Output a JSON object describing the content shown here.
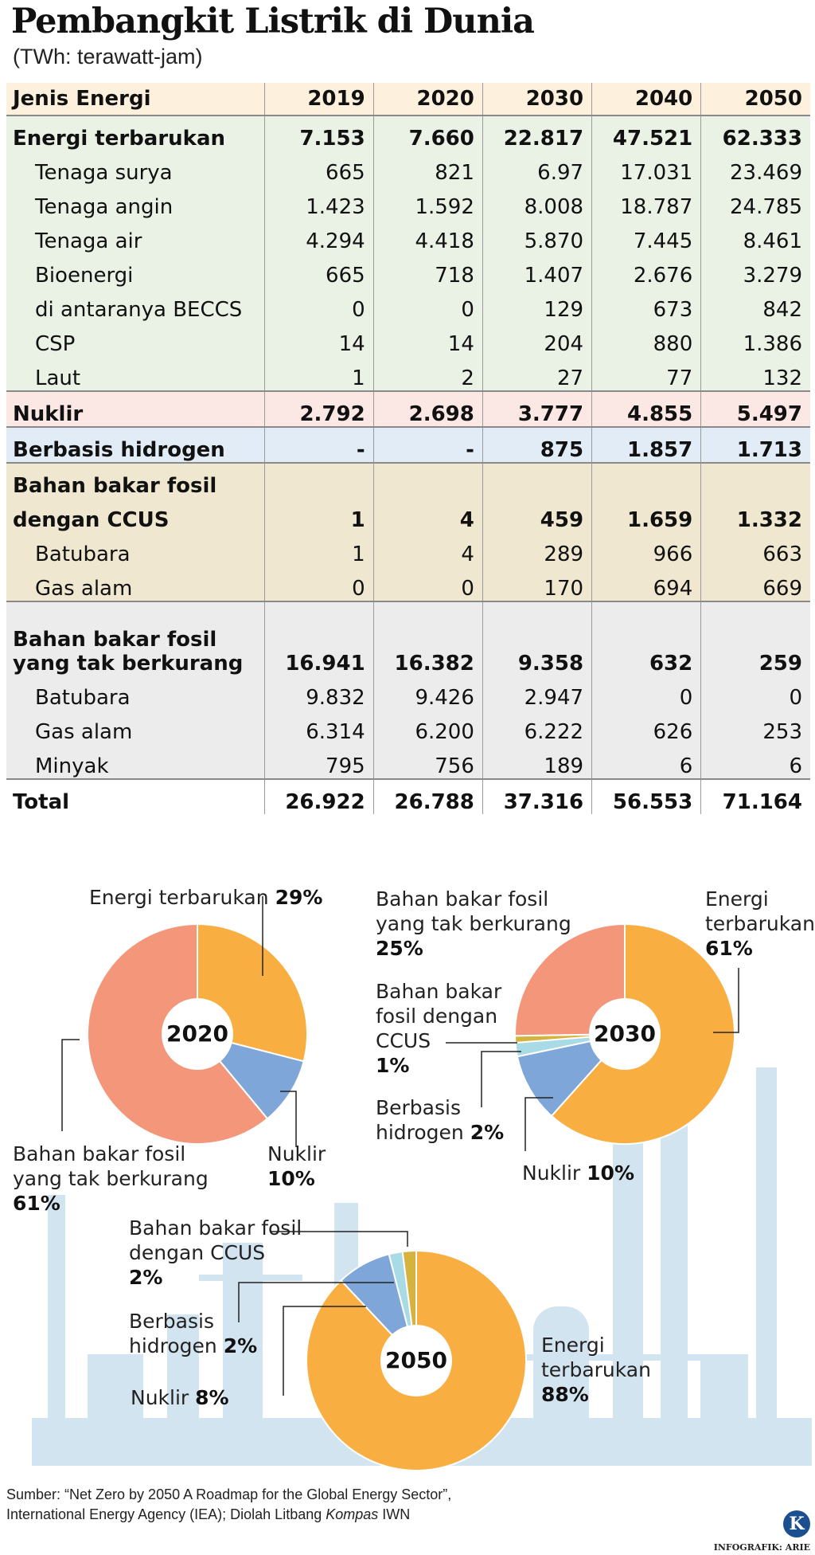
{
  "title": "Pembangkit Listrik di Dunia",
  "subtitle": "(TWh: terawatt-jam)",
  "table": {
    "header": [
      "Jenis Energi",
      "2019",
      "2020",
      "2030",
      "2040",
      "2050"
    ],
    "renewable": {
      "label": "Energi terbarukan",
      "values": [
        "7.153",
        "7.660",
        "22.817",
        "47.521",
        "62.333"
      ]
    },
    "renewable_rows": [
      {
        "label": "Tenaga  surya",
        "values": [
          "665",
          "821",
          "6.97",
          "17.031",
          "23.469"
        ]
      },
      {
        "label": "Tenaga angin",
        "values": [
          "1.423",
          "1.592",
          "8.008",
          "18.787",
          "24.785"
        ]
      },
      {
        "label": "Tenaga air",
        "values": [
          "4.294",
          "4.418",
          "5.870",
          "7.445",
          "8.461"
        ]
      },
      {
        "label": "Bioenergi",
        "values": [
          "665",
          "718",
          "1.407",
          "2.676",
          "3.279"
        ]
      },
      {
        "label": "di antaranya BECCS",
        "values": [
          "0",
          "0",
          "129",
          "673",
          "842"
        ]
      },
      {
        "label": "CSP",
        "values": [
          "14",
          "14",
          "204",
          "880",
          "1.386"
        ]
      },
      {
        "label": "Laut",
        "values": [
          "1",
          "2",
          "27",
          "77",
          "132"
        ]
      }
    ],
    "nuclear": {
      "label": "Nuklir",
      "values": [
        "2.792",
        "2.698",
        "3.777",
        "4.855",
        "5.497"
      ]
    },
    "hydrogen": {
      "label": "Berbasis hidrogen",
      "values": [
        "-",
        "-",
        "875",
        "1.857",
        "1.713"
      ]
    },
    "ccus": {
      "label_line1": "Bahan bakar fosil",
      "label_line2": "dengan CCUS",
      "values": [
        "1",
        "4",
        "459",
        "1.659",
        "1.332"
      ]
    },
    "ccus_rows": [
      {
        "label": "Batubara",
        "values": [
          "1",
          "4",
          "289",
          "966",
          "663"
        ]
      },
      {
        "label": "Gas alam",
        "values": [
          "0",
          "0",
          "170",
          "694",
          "669"
        ]
      }
    ],
    "unabated": {
      "label": "Bahan bakar fosil yang tak berkurang",
      "values": [
        "16.941",
        "16.382",
        "9.358",
        "632",
        "259"
      ]
    },
    "unabated_rows": [
      {
        "label": "Batubara",
        "values": [
          "9.832",
          "9.426",
          "2.947",
          "0",
          "0"
        ]
      },
      {
        "label": "Gas alam",
        "values": [
          "6.314",
          "6.200",
          "6.222",
          "626",
          "253"
        ]
      },
      {
        "label": "Minyak",
        "values": [
          "795",
          "756",
          "189",
          "6",
          "6"
        ]
      }
    ],
    "total": {
      "label": "Total",
      "values": [
        "26.922",
        "26.788",
        "37.316",
        "56.553",
        "71.164"
      ]
    }
  },
  "colors": {
    "renewable": "#f9ae42",
    "unabated": "#f4967a",
    "nuclear": "#7ea6d8",
    "hydrogen": "#a9dbe6",
    "ccus": "#d6b33f",
    "skyline": "#d3e4f1"
  },
  "chart_data": [
    {
      "type": "pie",
      "center_label": "2020",
      "slices": [
        {
          "label": "Energi terbarukan",
          "pct": "29%",
          "value": 29,
          "color": "#f9ae42"
        },
        {
          "label": "Nuklir",
          "pct": "10%",
          "value": 10,
          "color": "#7ea6d8"
        },
        {
          "label": "Bahan bakar fosil yang tak berkurang",
          "pct": "61%",
          "value": 61,
          "color": "#f4967a"
        }
      ],
      "labels": {
        "ren": {
          "line1": "Energi terbarukan",
          "pct": "29%"
        },
        "nuk": {
          "line1": "Nuklir",
          "pct": "10%"
        },
        "unb": {
          "line1": "Bahan bakar fosil",
          "line2": "yang tak berkurang",
          "pct": "61%"
        }
      }
    },
    {
      "type": "pie",
      "center_label": "2030",
      "slices": [
        {
          "label": "Energi terbarukan",
          "pct": "61%",
          "value": 61,
          "color": "#f9ae42"
        },
        {
          "label": "Nuklir",
          "pct": "10%",
          "value": 10,
          "color": "#7ea6d8"
        },
        {
          "label": "Berbasis hidrogen",
          "pct": "2%",
          "value": 2,
          "color": "#a9dbe6"
        },
        {
          "label": "Bahan bakar fosil dengan CCUS",
          "pct": "1%",
          "value": 1,
          "color": "#d6b33f"
        },
        {
          "label": "Bahan bakar fosil yang tak berkurang",
          "pct": "25%",
          "value": 25,
          "color": "#f4967a"
        }
      ],
      "labels": {
        "unb": {
          "line1": "Bahan bakar fosil",
          "line2": "yang tak berkurang",
          "pct": "25%"
        },
        "ren": {
          "line1": "Energi",
          "line2": "terbarukan",
          "pct": "61%"
        },
        "ccus": {
          "line1": "Bahan bakar",
          "line2": "fosil dengan",
          "line3": "CCUS",
          "pct": "1%"
        },
        "hyd": {
          "line1": "Berbasis",
          "line2": "hidrogen",
          "pct": "2%"
        },
        "nuk": {
          "line1": "Nuklir",
          "pct": "10%"
        }
      }
    },
    {
      "type": "pie",
      "center_label": "2050",
      "slices": [
        {
          "label": "Energi terbarukan",
          "pct": "88%",
          "value": 88,
          "color": "#f9ae42"
        },
        {
          "label": "Nuklir",
          "pct": "8%",
          "value": 8,
          "color": "#7ea6d8"
        },
        {
          "label": "Berbasis hidrogen",
          "pct": "2%",
          "value": 2,
          "color": "#a9dbe6"
        },
        {
          "label": "Bahan bakar fosil dengan CCUS",
          "pct": "2%",
          "value": 2,
          "color": "#d6b33f"
        }
      ],
      "labels": {
        "ccus": {
          "line1": "Bahan bakar fosil",
          "line2": "dengan CCUS",
          "pct": "2%"
        },
        "hyd": {
          "line1": "Berbasis",
          "line2": "hidrogen",
          "pct": "2%"
        },
        "nuk": {
          "line1": "Nuklir",
          "pct": "8%"
        },
        "ren": {
          "line1": "Energi",
          "line2": "terbarukan",
          "pct": "88%"
        }
      }
    }
  ],
  "source": {
    "line1": "Sumber: “Net Zero by 2050 A Roadmap for the Global Energy Sector”,",
    "line2_a": "International Energy Agency (IEA); Diolah Litbang ",
    "line2_b": "Kompas",
    "line2_c": " IWN"
  },
  "credit": "INFOGRAFIK: ARIE",
  "logo_letter": "K"
}
